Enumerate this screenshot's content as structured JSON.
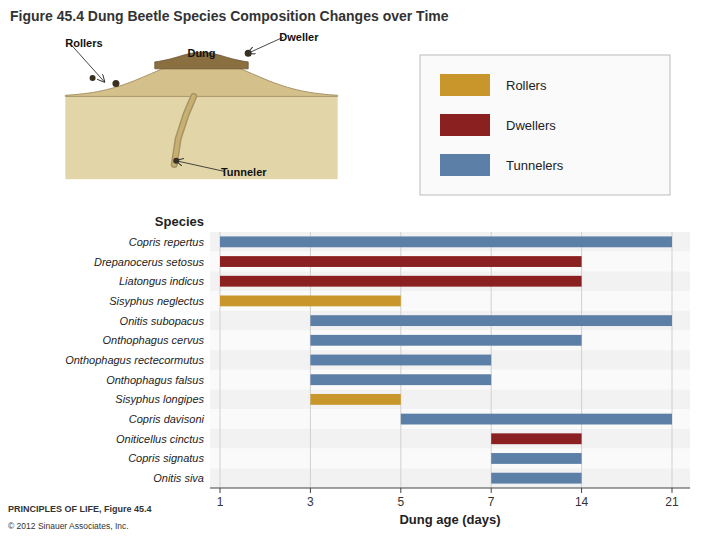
{
  "chart_data": {
    "type": "bar",
    "orientation": "horizontal",
    "title": "Figure 45.4  Dung Beetle Species Composition Changes over Time",
    "categories": [
      "Copris repertus",
      "Drepanocerus setosus",
      "Liatongus indicus",
      "Sisyphus neglectus",
      "Onitis subopacus",
      "Onthophagus cervus",
      "Onthophagus rectecormutus",
      "Onthophagus falsus",
      "Sisyphus longipes",
      "Copris davisoni",
      "Oniticellus cinctus",
      "Copris signatus",
      "Onitis siva"
    ],
    "series": [
      {
        "name": "Rollers",
        "color": "#c8962a",
        "starts": [
          null,
          null,
          null,
          1,
          null,
          null,
          null,
          null,
          3,
          null,
          null,
          null,
          null
        ],
        "values": [
          null,
          null,
          null,
          5,
          null,
          null,
          null,
          null,
          5,
          null,
          null,
          null,
          null
        ]
      },
      {
        "name": "Dwellers",
        "color": "#8b2020",
        "starts": [
          null,
          1,
          1,
          null,
          null,
          null,
          null,
          null,
          null,
          null,
          7,
          null,
          null
        ],
        "values": [
          null,
          14,
          14,
          null,
          null,
          null,
          null,
          null,
          null,
          null,
          14,
          null,
          null
        ]
      },
      {
        "name": "Tunnelers",
        "color": "#5b7fa6",
        "starts": [
          1,
          null,
          null,
          null,
          3,
          3,
          3,
          3,
          null,
          5,
          null,
          7,
          7
        ],
        "values": [
          21,
          null,
          null,
          null,
          21,
          14,
          7,
          7,
          null,
          21,
          null,
          14,
          14
        ]
      }
    ],
    "xlabel": "Dung age (days)",
    "ylabel": "Species",
    "xlim": [
      1,
      21
    ],
    "xticks": [
      1,
      3,
      5,
      7,
      14,
      21
    ],
    "grid": true,
    "legend": "upper right",
    "annotations": [
      "Rollers",
      "Dweller",
      "Dung",
      "Tunneler"
    ],
    "footnotes": [
      "PRINCIPLES OF LIFE, Figure 45.4",
      "© 2012 Sinauer Associates, Inc."
    ]
  }
}
